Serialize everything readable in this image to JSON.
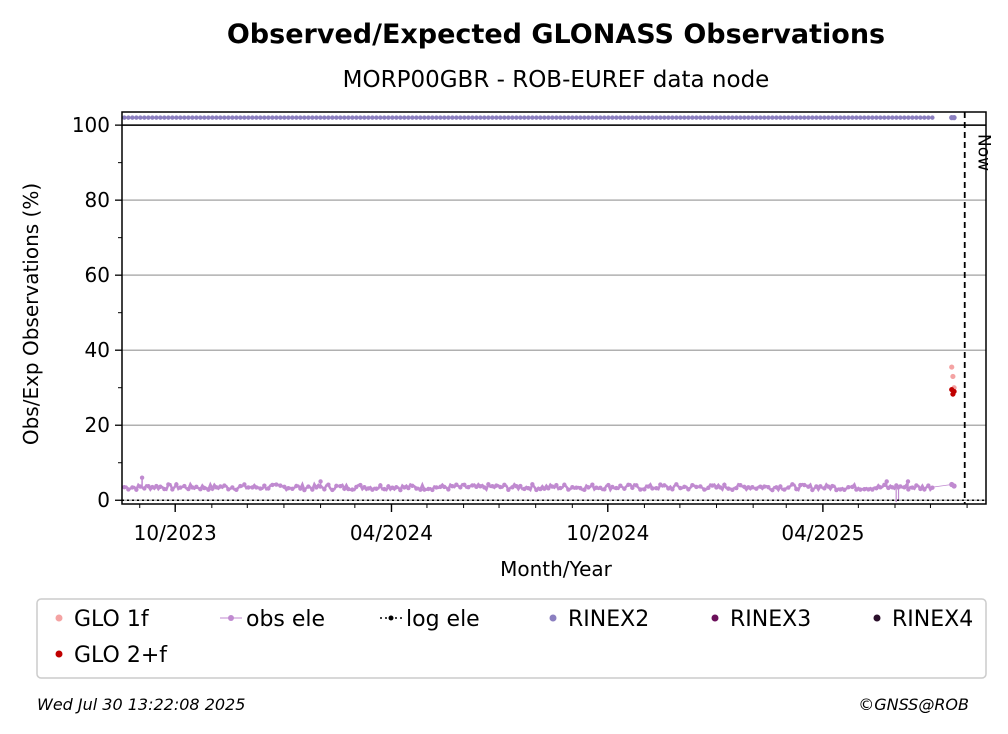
{
  "chart_data": {
    "type": "scatter",
    "title": "Observed/Expected GLONASS Observations",
    "subtitle": "MORP00GBR - ROB-EUREF data node",
    "xlabel": "Month/Year",
    "ylabel": "Obs/Exp Observations (%)",
    "ylim": [
      -1,
      103.5
    ],
    "xlim": [
      "2023-08-17",
      "2025-08-17"
    ],
    "yticks": [
      0,
      20,
      40,
      60,
      80,
      100
    ],
    "xticks": [
      {
        "date": "2023-10-01",
        "label": "10/2023"
      },
      {
        "date": "2024-04-01",
        "label": "04/2024"
      },
      {
        "date": "2024-10-01",
        "label": "10/2024"
      },
      {
        "date": "2025-04-01",
        "label": "04/2025"
      }
    ],
    "grid": "horizontal",
    "now_date": "2025-07-30",
    "now_label": "Now",
    "series": [
      {
        "name": "GLO 1f",
        "color": "#f4a3a3",
        "style": "dots",
        "points": [
          [
            "2025-07-19",
            35.5
          ],
          [
            "2025-07-20",
            33.0
          ],
          [
            "2025-07-21",
            30.0
          ]
        ]
      },
      {
        "name": "GLO 2+f",
        "color": "#c00000",
        "style": "dots",
        "points": [
          [
            "2025-07-19",
            29.5
          ],
          [
            "2025-07-20",
            28.3
          ],
          [
            "2025-07-21",
            29.0
          ]
        ]
      },
      {
        "name": "obs ele",
        "color": "#c08ad0",
        "style": "band",
        "start": "2023-08-19",
        "end": "2025-07-03",
        "level": 3.5,
        "spikes": [
          [
            "2023-09-03",
            6.0
          ],
          [
            "2024-02-01",
            5.0
          ],
          [
            "2025-05-25",
            5.0
          ],
          [
            "2025-06-12",
            5.0
          ]
        ],
        "dips": [
          [
            "2025-06-02",
            -0.5
          ],
          [
            "2025-06-04",
            0.0
          ]
        ],
        "tail": [
          [
            "2025-07-19",
            4.2
          ],
          [
            "2025-07-21",
            3.8
          ]
        ]
      },
      {
        "name": "log ele",
        "color": "#000000",
        "style": "dotted",
        "value": 0
      },
      {
        "name": "RINEX2",
        "color": "#8b7fc0",
        "style": "band",
        "start": "2023-08-19",
        "end": "2025-07-03",
        "level": 102,
        "tail": [
          [
            "2025-07-19",
            102
          ],
          [
            "2025-07-21",
            102
          ]
        ]
      },
      {
        "name": "RINEX3",
        "color": "#6b0f5a",
        "style": "dots",
        "points": []
      },
      {
        "name": "RINEX4",
        "color": "#2a0f2a",
        "style": "dots",
        "points": []
      }
    ]
  },
  "legend": {
    "items": [
      {
        "label": "GLO 1f",
        "color": "#f4a3a3",
        "marker": "dot"
      },
      {
        "label": "obs ele",
        "color": "#c08ad0",
        "marker": "line-dot"
      },
      {
        "label": "log ele",
        "color": "#000000",
        "marker": "dotted-line"
      },
      {
        "label": "RINEX2",
        "color": "#8b7fc0",
        "marker": "dot"
      },
      {
        "label": "RINEX3",
        "color": "#6b0f5a",
        "marker": "dot"
      },
      {
        "label": "RINEX4",
        "color": "#2a0f2a",
        "marker": "dot"
      },
      {
        "label": "GLO 2+f",
        "color": "#c00000",
        "marker": "dot"
      }
    ]
  },
  "footer": {
    "timestamp": "Wed Jul 30 13:22:08 2025",
    "credit": "©GNSS@ROB"
  }
}
